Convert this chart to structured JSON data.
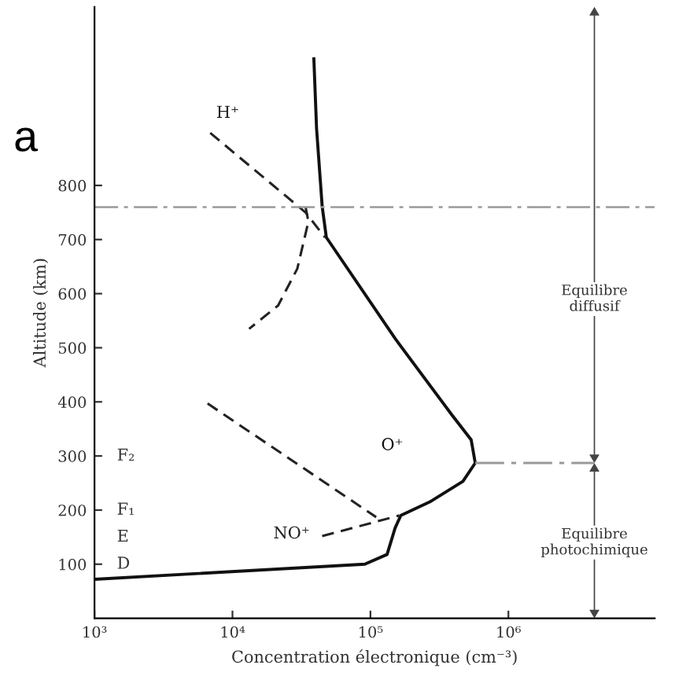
{
  "chart_data": {
    "type": "line",
    "title": "a",
    "xlabel": "Concentration électronique (cm⁻³)",
    "ylabel": "Altitude (km)",
    "log": "x",
    "grid": false,
    "legend": false,
    "xlim": [
      1000,
      11500000
    ],
    "xticks": [
      {
        "value": 1000,
        "label": "10³"
      },
      {
        "value": 10000,
        "label": "10⁴"
      },
      {
        "value": 100000,
        "label": "10⁵"
      },
      {
        "value": 1000000,
        "label": "10⁶"
      }
    ],
    "ylim": [
      0,
      1130
    ],
    "yticks": [
      100,
      200,
      300,
      400,
      500,
      600,
      700,
      800
    ],
    "series": [
      {
        "name": "O⁺",
        "color": "#111111",
        "line_style": "solid",
        "x": [
          1000,
          91000,
          132000,
          151000,
          166000,
          269000,
          468000,
          575000,
          537000,
          389000,
          151000,
          47900,
          44700,
          40700,
          38900
        ],
        "values": [
          72,
          100,
          118,
          167,
          190,
          215,
          253,
          287,
          330,
          376,
          517,
          704,
          761,
          905,
          1034
        ]
      },
      {
        "name": "H⁺",
        "color": "#222222",
        "line_style": "dashed",
        "x": [
          6900,
          33900,
          46800
        ],
        "values": [
          897,
          750,
          704
        ]
      },
      {
        "color": "#222222",
        "line_style": "dashed",
        "x": [
          33900,
          35500,
          29500,
          21400,
          13200
        ],
        "values": [
          760,
          733,
          646,
          578,
          535
        ]
      },
      {
        "color": "#222222",
        "line_style": "dashed",
        "x": [
          6600,
          110000
        ],
        "values": [
          397,
          187
        ]
      },
      {
        "name": "NO⁺",
        "color": "#222222",
        "line_style": "dashed",
        "x": [
          44700,
          162000
        ],
        "values": [
          152,
          190
        ]
      },
      {
        "color": "#999999",
        "line_style": "dashdot",
        "x": [
          575000,
          4200000
        ],
        "values": [
          287,
          287
        ]
      }
    ],
    "ref_lines": [
      {
        "axis": "y",
        "value": 760,
        "color": "#999999",
        "line_style": "dashdot"
      }
    ],
    "annotations": [
      "F₂",
      "F₁",
      "E",
      "D",
      "Equilibre\ndiffusif",
      "Equilibre\nphotochimique"
    ]
  }
}
